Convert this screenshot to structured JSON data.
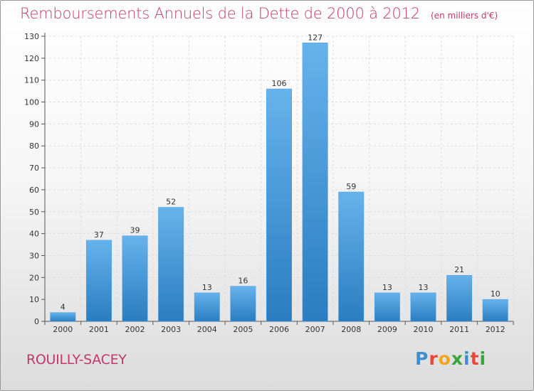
{
  "title": "Remboursements Annuels de la Dette de 2000 à 2012",
  "subtitle": "(en milliers d'€)",
  "commune": "ROUILLY-SACEY",
  "logo": {
    "letters": [
      "P",
      "r",
      "o",
      "x",
      "i",
      "t",
      "i"
    ],
    "colors": [
      "#3d8fd0",
      "#e8473b",
      "#f2a51a",
      "#3aa63a",
      "#3d8fd0",
      "#e8473b",
      "#3aa63a"
    ]
  },
  "colors": {
    "bar_light": "#66b2ec",
    "bar_dark": "#2a7dc0",
    "title": "#c0396a",
    "grid": "#dddddd"
  },
  "chart_data": {
    "type": "bar",
    "title": "Remboursements Annuels de la Dette de 2000 à 2012",
    "subtitle": "(en milliers d'€)",
    "categories": [
      "2000",
      "2001",
      "2002",
      "2003",
      "2004",
      "2005",
      "2006",
      "2007",
      "2008",
      "2009",
      "2010",
      "2011",
      "2012"
    ],
    "values": [
      4,
      37,
      39,
      52,
      13,
      16,
      106,
      127,
      59,
      13,
      13,
      21,
      10
    ],
    "ylim": [
      0,
      130
    ],
    "yticks": [
      0,
      10,
      20,
      30,
      40,
      50,
      60,
      70,
      80,
      90,
      100,
      110,
      120,
      130
    ],
    "grid": true,
    "data_labels": true
  }
}
